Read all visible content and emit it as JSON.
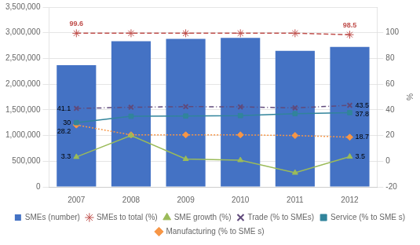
{
  "chart_data": {
    "type": "bar",
    "categories": [
      "2007",
      "2008",
      "2009",
      "2010",
      "2011",
      "2012"
    ],
    "series": [
      {
        "name": "SMEs (number)",
        "type": "bar",
        "color": "#4472C4",
        "values": [
          2370000,
          2837000,
          2880000,
          2902000,
          2649000,
          2726000
        ]
      },
      {
        "name": "SMEs to total (%)",
        "type": "line",
        "axis": "y2",
        "color": "#C0504D",
        "marker": "star",
        "line_style": "dashed",
        "values": [
          99.6,
          99.6,
          99.6,
          99.6,
          99.6,
          98.5
        ]
      },
      {
        "name": "SME growth (%)",
        "type": "line",
        "axis": "y2",
        "color": "#9BBB59",
        "marker": "triangle",
        "line_style": "solid",
        "values": [
          3.3,
          20.0,
          1.7,
          0.8,
          -9.0,
          3.5
        ]
      },
      {
        "name": "Trade (% to SMEs)",
        "type": "line",
        "axis": "y2",
        "color": "#604A7B",
        "marker": "x",
        "line_style": "dashdot",
        "values": [
          41.1,
          42.0,
          42.5,
          42.3,
          41.5,
          43.5
        ]
      },
      {
        "name": "Service (% to SME s)",
        "type": "line",
        "axis": "y2",
        "color": "#31849B",
        "marker": "square",
        "line_style": "solid",
        "values": [
          30.0,
          35.0,
          35.2,
          35.5,
          37.0,
          37.8
        ]
      },
      {
        "name": "Manufacturing (% to SME s)",
        "type": "line",
        "axis": "y2",
        "color": "#F79646",
        "marker": "diamond",
        "line_style": "dotted",
        "values": [
          28.2,
          20.5,
          20.5,
          20.5,
          20.0,
          18.7
        ]
      }
    ],
    "ylim": [
      0,
      3500000
    ],
    "yticks": [
      0,
      {
        "value": 500000,
        "label": "500,000"
      },
      {
        "value": 1000000,
        "label": "1,000,000"
      },
      {
        "value": 1500000,
        "label": "1,500,000"
      },
      {
        "value": 2000000,
        "label": "2,000,000"
      },
      {
        "value": 2500000,
        "label": "2,500,000"
      },
      {
        "value": 3000000,
        "label": "3,000,000"
      },
      {
        "value": 3500000,
        "label": "3,500,000"
      }
    ],
    "y2label": "%",
    "y2lim": [
      -20,
      120
    ],
    "y2ticks": [
      -20,
      0,
      20,
      40,
      60,
      80,
      100
    ],
    "grid": true,
    "legend": "bottom",
    "annotations": [
      {
        "text": "99.6",
        "x": "2007",
        "y": 99.6,
        "axis": "y2",
        "position": "above",
        "color": "#C0504D"
      },
      {
        "text": "98.5",
        "x": "2012",
        "y": 98.5,
        "axis": "y2",
        "position": "above",
        "color": "#C0504D"
      },
      {
        "text": "41.1",
        "x": "2007",
        "y": 41.1,
        "axis": "y2",
        "position": "left"
      },
      {
        "text": "30",
        "x": "2007",
        "y": 30,
        "axis": "y2",
        "position": "left"
      },
      {
        "text": "28.2",
        "x": "2007",
        "y": 28.2,
        "axis": "y2",
        "position": "left"
      },
      {
        "text": "3.3",
        "x": "2007",
        "y": 3.3,
        "axis": "y2",
        "position": "left"
      },
      {
        "text": "43.5",
        "x": "2012",
        "y": 43.5,
        "axis": "y2",
        "position": "right"
      },
      {
        "text": "37.8",
        "x": "2012",
        "y": 37.8,
        "axis": "y2",
        "position": "right"
      },
      {
        "text": "18.7",
        "x": "2012",
        "y": 18.7,
        "axis": "y2",
        "position": "right"
      },
      {
        "text": "3.5",
        "x": "2012",
        "y": 3.5,
        "axis": "y2",
        "position": "right"
      }
    ]
  }
}
